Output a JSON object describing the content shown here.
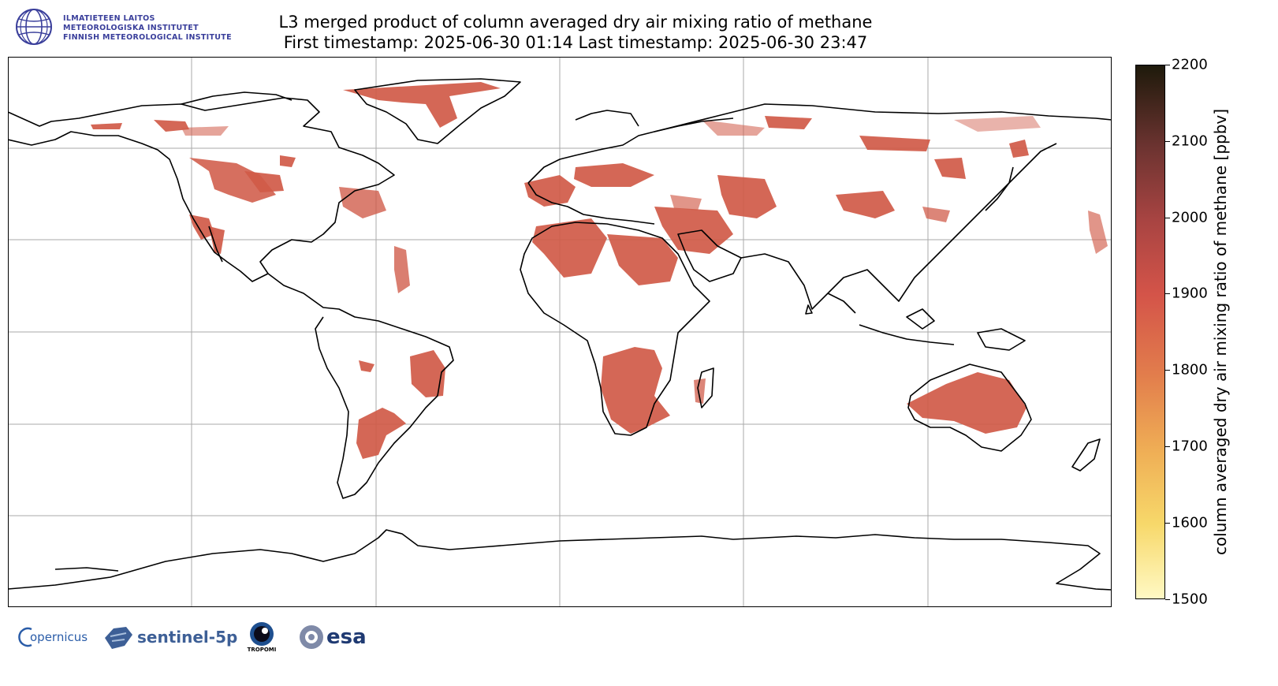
{
  "header": {
    "institute_lines": [
      "ILMATIETEEN LAITOS",
      "METEOROLOGISKA INSTITUTET",
      "FINNISH METEOROLOGICAL INSTITUTE"
    ],
    "title_line1": "L3 merged product of column averaged dry air mixing ratio of methane",
    "title_line2": "First timestamp: 2025-06-30 01:14   Last timestamp: 2025-06-30 23:47"
  },
  "colorbar": {
    "label": "column averaged dry air mixing ratio of methane [ppbv]",
    "ticks": [
      "1500",
      "1600",
      "1700",
      "1800",
      "1900",
      "2000",
      "2100",
      "2200"
    ],
    "min": 1500,
    "max": 2200,
    "colors": [
      "#fff9c4",
      "#f7d86a",
      "#efad55",
      "#e27d4c",
      "#d45449",
      "#a84442",
      "#6b3330",
      "#1e1a0b"
    ]
  },
  "map": {
    "projection": "equirectangular",
    "gridlines": true,
    "grid_color": "#aaaaaa",
    "coastline_color": "#000000",
    "data_color": "#d05a48"
  },
  "footer_logos": {
    "copernicus": "opernicus",
    "sentinel": "sentinel-5p",
    "tropomi": "TROPOMI",
    "esa": "esa"
  }
}
